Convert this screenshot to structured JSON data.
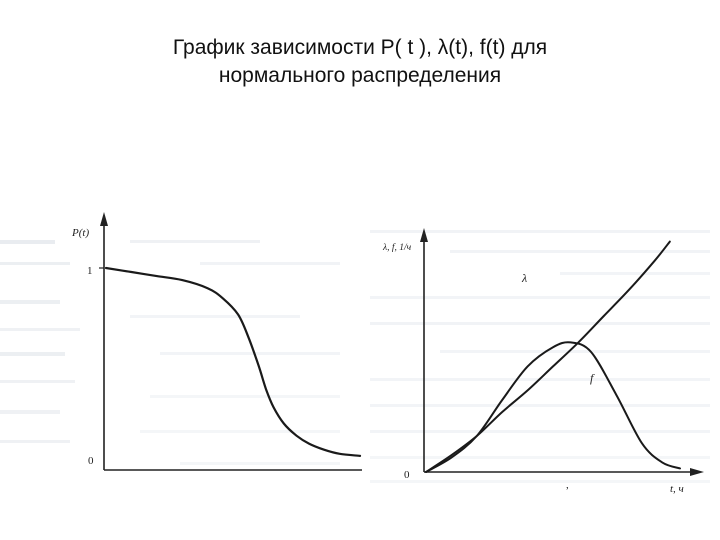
{
  "slide": {
    "title_line1": "График зависимости P( t ), λ(t), f(t)  для",
    "title_line2": "нормального распределения"
  },
  "colors": {
    "ink": "#222222",
    "scan_bleed": "#dfe4ea"
  },
  "chart_data": [
    {
      "type": "line",
      "title": "",
      "xlabel": "",
      "ylabel": "P(t)",
      "y_ticks": [
        "1",
        "0"
      ],
      "ylim": [
        0,
        1.15
      ],
      "xlim": [
        0,
        10
      ],
      "grid": false,
      "series": [
        {
          "x": [
            0,
            1,
            2,
            3,
            4,
            4.6,
            5.2,
            5.6,
            6,
            6.3,
            6.6,
            7,
            7.5,
            8,
            8.6,
            9.2,
            10
          ],
          "values": [
            1.0,
            0.98,
            0.96,
            0.94,
            0.9,
            0.85,
            0.77,
            0.66,
            0.52,
            0.4,
            0.31,
            0.23,
            0.17,
            0.13,
            0.1,
            0.08,
            0.07
          ]
        }
      ]
    },
    {
      "type": "line",
      "title": "",
      "ylabel": "λ, f, 1/ч",
      "xlabel": "t, ч",
      "origin_label": "0",
      "axis_mark": ",",
      "xlim": [
        0,
        10
      ],
      "ylim": [
        0,
        10
      ],
      "grid": false,
      "series": [
        {
          "name": "λ",
          "x": [
            0,
            1,
            2,
            3,
            4,
            5,
            6,
            7,
            8,
            9,
            9.6
          ],
          "values": [
            0,
            0.7,
            1.5,
            2.5,
            3.4,
            4.4,
            5.4,
            6.5,
            7.6,
            8.8,
            9.6
          ]
        },
        {
          "name": "f",
          "x": [
            0,
            1,
            2,
            3,
            4,
            5,
            5.7,
            6.5,
            7.5,
            8.5,
            9.3,
            10
          ],
          "values": [
            0,
            0.6,
            1.5,
            3.0,
            4.4,
            5.2,
            5.4,
            5.0,
            3.2,
            1.2,
            0.4,
            0.15
          ]
        }
      ]
    }
  ]
}
